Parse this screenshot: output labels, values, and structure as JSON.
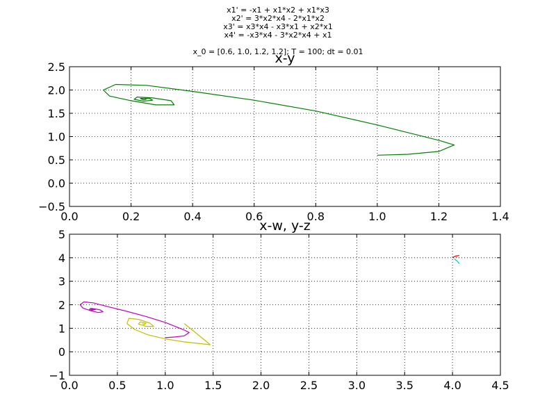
{
  "suptitle": {
    "lines": [
      "x1' = -x1 + x1*x2 + x1*x3",
      "x2' = 3*x2*x4 - 2*x1*x2",
      "x3' = x3*x4 - x3*x1 + x2*x1",
      "x4' = -x3*x4 - 3*x2*x4 + x1",
      "",
      "x_0 = [0.6, 1.0, 1.2, 1.2]; T = 100; dt = 0.01"
    ]
  },
  "chart_data": [
    {
      "type": "line",
      "title": "x-y",
      "xlabel": "",
      "ylabel": "",
      "xlim": [
        0.0,
        1.4
      ],
      "ylim": [
        -0.5,
        2.5
      ],
      "xticks": [
        "0.0",
        "0.2",
        "0.4",
        "0.6",
        "0.8",
        "1.0",
        "1.2",
        "1.4"
      ],
      "yticks": [
        "−0.5",
        "0.0",
        "0.5",
        "1.0",
        "1.5",
        "2.0",
        "2.5"
      ],
      "grid": true,
      "series": [
        {
          "color": "#008000",
          "points": [
            [
              1.0,
              0.6
            ],
            [
              1.1,
              0.62
            ],
            [
              1.2,
              0.68
            ],
            [
              1.25,
              0.82
            ],
            [
              1.2,
              0.92
            ],
            [
              1.0,
              1.25
            ],
            [
              0.8,
              1.55
            ],
            [
              0.6,
              1.78
            ],
            [
              0.4,
              1.97
            ],
            [
              0.25,
              2.1
            ],
            [
              0.15,
              2.12
            ],
            [
              0.11,
              2.0
            ],
            [
              0.13,
              1.87
            ],
            [
              0.2,
              1.77
            ],
            [
              0.28,
              1.68
            ],
            [
              0.34,
              1.68
            ],
            [
              0.33,
              1.77
            ],
            [
              0.27,
              1.83
            ],
            [
              0.22,
              1.85
            ],
            [
              0.21,
              1.8
            ],
            [
              0.24,
              1.76
            ],
            [
              0.27,
              1.78
            ],
            [
              0.26,
              1.82
            ],
            [
              0.23,
              1.82
            ],
            [
              0.24,
              1.79
            ],
            [
              0.25,
              1.8
            ]
          ]
        }
      ]
    },
    {
      "type": "line",
      "title": "x-w, y-z",
      "xlabel": "",
      "ylabel": "",
      "xlim": [
        0.0,
        4.5
      ],
      "ylim": [
        -1,
        5
      ],
      "xticks": [
        "0.0",
        "0.5",
        "1.0",
        "1.5",
        "2.0",
        "2.5",
        "3.0",
        "3.5",
        "4.0",
        "4.5"
      ],
      "yticks": [
        "−1",
        "0",
        "1",
        "2",
        "3",
        "4",
        "5"
      ],
      "grid": true,
      "series": [
        {
          "color": "#bf00bf",
          "points": [
            [
              1.0,
              0.6
            ],
            [
              1.1,
              0.63
            ],
            [
              1.2,
              0.68
            ],
            [
              1.25,
              0.82
            ],
            [
              1.2,
              0.92
            ],
            [
              1.0,
              1.25
            ],
            [
              0.8,
              1.5
            ],
            [
              0.6,
              1.72
            ],
            [
              0.4,
              1.92
            ],
            [
              0.25,
              2.08
            ],
            [
              0.15,
              2.12
            ],
            [
              0.11,
              2.0
            ],
            [
              0.14,
              1.86
            ],
            [
              0.22,
              1.75
            ],
            [
              0.3,
              1.67
            ],
            [
              0.35,
              1.7
            ],
            [
              0.32,
              1.78
            ],
            [
              0.26,
              1.83
            ],
            [
              0.22,
              1.85
            ],
            [
              0.21,
              1.8
            ],
            [
              0.24,
              1.77
            ],
            [
              0.27,
              1.8
            ],
            [
              0.25,
              1.82
            ],
            [
              0.23,
              1.81
            ],
            [
              0.25,
              1.8
            ]
          ]
        },
        {
          "color": "#bfbf00",
          "points": [
            [
              1.2,
              1.2
            ],
            [
              1.32,
              0.8
            ],
            [
              1.47,
              0.3
            ],
            [
              1.2,
              0.42
            ],
            [
              1.0,
              0.55
            ],
            [
              0.82,
              0.72
            ],
            [
              0.68,
              0.95
            ],
            [
              0.6,
              1.2
            ],
            [
              0.62,
              1.42
            ],
            [
              0.72,
              1.38
            ],
            [
              0.84,
              1.22
            ],
            [
              0.88,
              1.08
            ],
            [
              0.8,
              1.08
            ],
            [
              0.72,
              1.18
            ],
            [
              0.74,
              1.27
            ],
            [
              0.8,
              1.22
            ],
            [
              0.78,
              1.16
            ],
            [
              0.76,
              1.2
            ]
          ]
        },
        {
          "color": "#ff0000",
          "points": [
            [
              4.0,
              4.0
            ],
            [
              4.03,
              4.07
            ],
            [
              4.07,
              4.1
            ]
          ]
        },
        {
          "color": "#00bfbf",
          "points": [
            [
              4.02,
              3.95
            ],
            [
              4.05,
              3.85
            ],
            [
              4.07,
              3.75
            ]
          ]
        }
      ]
    }
  ]
}
